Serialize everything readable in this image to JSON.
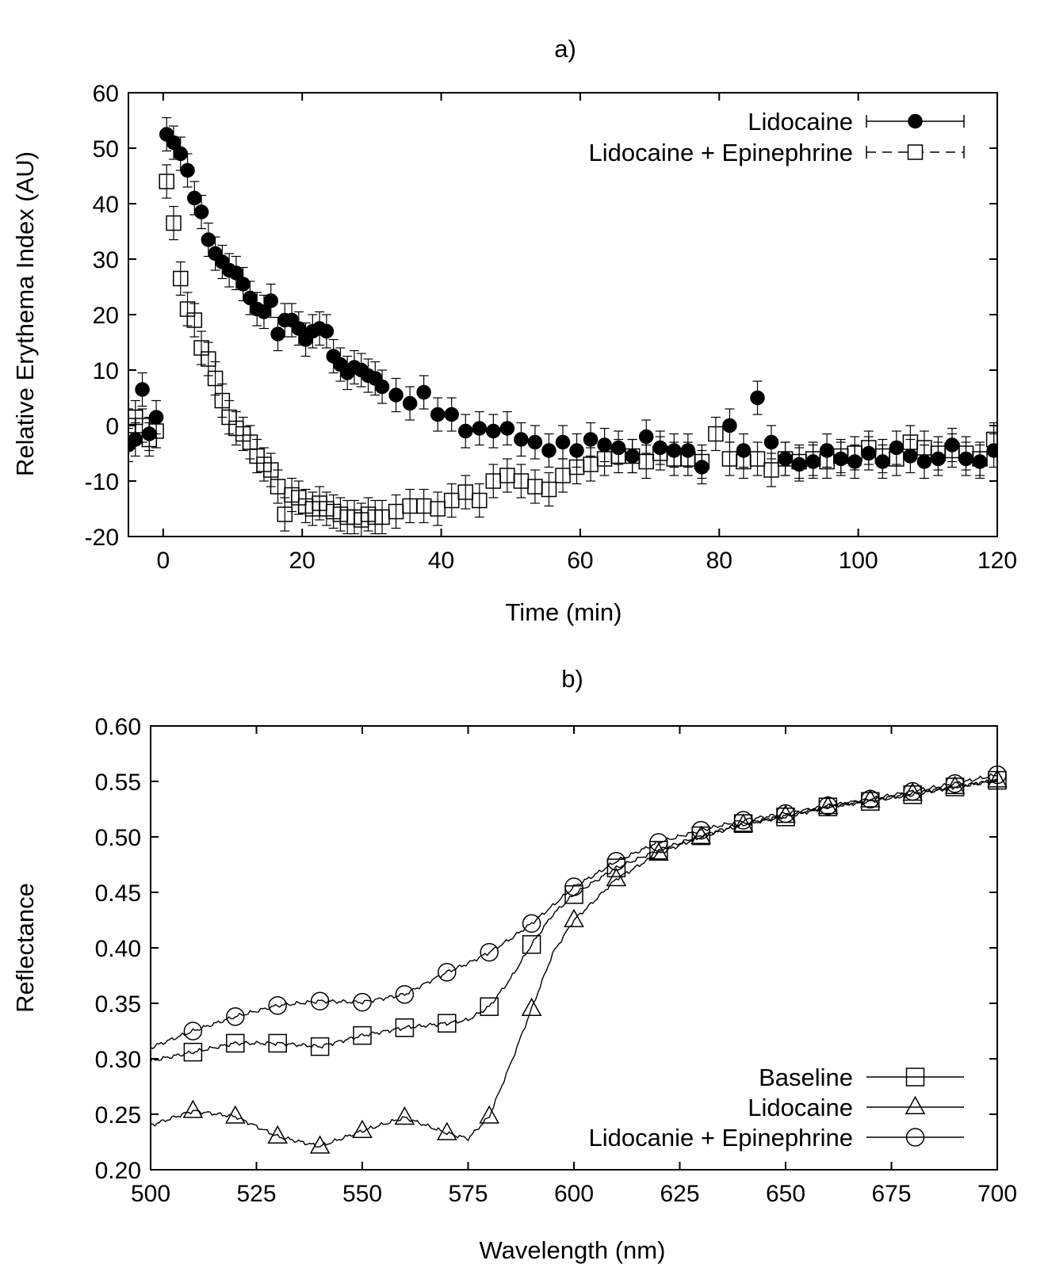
{
  "chart_data": [
    {
      "type": "scatter",
      "title": "a)",
      "xlabel": "Time (min)",
      "ylabel": "Relative Erythema Index (AU)",
      "xlim": [
        -5,
        120
      ],
      "ylim": [
        -20,
        60
      ],
      "xticks": [
        0,
        20,
        40,
        60,
        80,
        100,
        120
      ],
      "yticks": [
        -20,
        -10,
        0,
        10,
        20,
        30,
        40,
        50,
        60
      ],
      "legend_position": "top-right",
      "grid": false,
      "series": [
        {
          "name": "Lidocaine",
          "marker": "filled-circle",
          "error": 3,
          "x": [
            -5,
            -4,
            -3,
            -2,
            -1,
            0.5,
            1.5,
            2.5,
            3.5,
            4.5,
            5.5,
            6.5,
            7.5,
            8.5,
            9.5,
            10.5,
            11.5,
            12.5,
            13.5,
            14.5,
            15.5,
            16.5,
            17.5,
            18.5,
            19.5,
            20.5,
            21.5,
            22.5,
            23.5,
            24.5,
            25.5,
            26.5,
            27.5,
            28.5,
            29.5,
            30.5,
            31.5,
            33.5,
            35.5,
            37.5,
            39.5,
            41.5,
            43.5,
            45.5,
            47.5,
            49.5,
            51.5,
            53.5,
            55.5,
            57.5,
            59.5,
            61.5,
            63.5,
            65.5,
            67.5,
            69.5,
            71.5,
            73.5,
            75.5,
            77.5,
            81.5,
            83.5,
            85.5,
            87.5,
            89.5,
            91.5,
            93.5,
            95.5,
            97.5,
            99.5,
            101.5,
            103.5,
            105.5,
            107.5,
            109.5,
            111.5,
            113.5,
            115.5,
            117.5,
            119.5
          ],
          "y": [
            -3.5,
            -2.5,
            6.5,
            -1.5,
            1.5,
            52.5,
            51,
            49,
            46,
            41,
            38.5,
            33.5,
            31,
            29.5,
            28,
            27.5,
            25.5,
            23,
            21,
            20.5,
            22.5,
            16.5,
            19,
            19,
            17.5,
            15.5,
            17,
            17.5,
            17,
            12.5,
            11,
            9.5,
            10.5,
            10,
            9,
            8.5,
            7,
            5.5,
            4,
            6,
            2,
            2,
            -1,
            -0.5,
            -1,
            -0.5,
            -2.5,
            -3,
            -4.5,
            -3,
            -4.5,
            -2.5,
            -3.5,
            -4,
            -5.5,
            -2,
            -4,
            -4.5,
            -4.5,
            -7.5,
            0,
            -4.5,
            5,
            -3,
            -6,
            -7,
            -6.5,
            -4.5,
            -6,
            -6.5,
            -5,
            -6.5,
            -4,
            -5.5,
            -6.5,
            -6,
            -3.5,
            -6,
            -6.5,
            -4.5
          ]
        },
        {
          "name": "Lidocaine + Epinephrine",
          "marker": "open-square",
          "error": 3,
          "x": [
            -5,
            -4,
            -3,
            -2,
            -1,
            0.5,
            1.5,
            2.5,
            3.5,
            4.5,
            5.5,
            6.5,
            7.5,
            8.5,
            9.5,
            10.5,
            11.5,
            12.5,
            13.5,
            14.5,
            15.5,
            16.5,
            17.5,
            18.5,
            19.5,
            20.5,
            21.5,
            22.5,
            23.5,
            24.5,
            25.5,
            26.5,
            27.5,
            28.5,
            29.5,
            30.5,
            31.5,
            33.5,
            35.5,
            37.5,
            39.5,
            41.5,
            43.5,
            45.5,
            47.5,
            49.5,
            51.5,
            53.5,
            55.5,
            57.5,
            59.5,
            61.5,
            63.5,
            65.5,
            67.5,
            69.5,
            71.5,
            73.5,
            75.5,
            77.5,
            79.5,
            81.5,
            83.5,
            85.5,
            87.5,
            89.5,
            91.5,
            93.5,
            95.5,
            97.5,
            99.5,
            101.5,
            103.5,
            105.5,
            107.5,
            109.5,
            111.5,
            113.5,
            115.5,
            117.5,
            119.5
          ],
          "y": [
            0,
            1.5,
            0,
            -2.5,
            -1,
            44,
            36.5,
            26.5,
            21,
            19,
            14,
            12,
            8.5,
            4.5,
            1.5,
            -0.5,
            -1.5,
            -3,
            -5.5,
            -7,
            -8,
            -11,
            -16,
            -12.5,
            -13,
            -14.5,
            -15,
            -14,
            -15,
            -15.5,
            -16,
            -16.5,
            -16.5,
            -17,
            -16,
            -16.5,
            -16.5,
            -15.5,
            -14.5,
            -14.5,
            -15,
            -13.5,
            -12,
            -13.5,
            -10,
            -9,
            -10,
            -11,
            -11.5,
            -9,
            -7.5,
            -7,
            -6,
            -5.5,
            -5.5,
            -6.5,
            -5,
            -6,
            -6,
            -6.5,
            -1.5,
            -6,
            -6.5,
            -6,
            -8,
            -6,
            -6.5,
            -6,
            -6.5,
            -5.5,
            -5,
            -4,
            -5.5,
            -6,
            -3,
            -4,
            -5,
            -4.5,
            -5,
            -6,
            -2.5
          ]
        }
      ]
    },
    {
      "type": "line",
      "title": "b)",
      "xlabel": "Wavelength (nm)",
      "ylabel": "Reflectance",
      "xlim": [
        500,
        700
      ],
      "ylim": [
        0.2,
        0.6
      ],
      "xticks": [
        500,
        525,
        550,
        575,
        600,
        625,
        650,
        675,
        700
      ],
      "yticks": [
        0.2,
        0.25,
        0.3,
        0.35,
        0.4,
        0.45,
        0.5,
        0.55,
        0.6
      ],
      "legend_position": "bottom-right",
      "grid": false,
      "series": [
        {
          "name": "Baseline",
          "marker": "open-square",
          "x": [
            500,
            510,
            520,
            530,
            540,
            550,
            560,
            570,
            575,
            580,
            585,
            590,
            595,
            600,
            605,
            610,
            620,
            630,
            640,
            650,
            660,
            670,
            680,
            690,
            700
          ],
          "y": [
            0.298,
            0.306,
            0.314,
            0.314,
            0.311,
            0.321,
            0.328,
            0.332,
            0.335,
            0.347,
            0.372,
            0.403,
            0.43,
            0.448,
            0.46,
            0.472,
            0.488,
            0.501,
            0.512,
            0.518,
            0.527,
            0.532,
            0.538,
            0.545,
            0.551
          ]
        },
        {
          "name": "Lidocaine",
          "marker": "open-triangle",
          "x": [
            500,
            510,
            520,
            530,
            540,
            550,
            560,
            570,
            575,
            580,
            585,
            590,
            595,
            600,
            605,
            610,
            620,
            630,
            640,
            650,
            660,
            670,
            680,
            690,
            700
          ],
          "y": [
            0.24,
            0.253,
            0.248,
            0.23,
            0.221,
            0.235,
            0.247,
            0.233,
            0.228,
            0.248,
            0.295,
            0.345,
            0.395,
            0.425,
            0.443,
            0.462,
            0.485,
            0.5,
            0.511,
            0.519,
            0.527,
            0.533,
            0.539,
            0.545,
            0.551
          ]
        },
        {
          "name": "Lidocanie + Epinephrine",
          "marker": "open-circle",
          "x": [
            500,
            510,
            520,
            530,
            540,
            550,
            560,
            570,
            575,
            580,
            585,
            590,
            595,
            600,
            605,
            610,
            620,
            630,
            640,
            650,
            660,
            670,
            680,
            690,
            700
          ],
          "y": [
            0.31,
            0.325,
            0.338,
            0.348,
            0.352,
            0.351,
            0.358,
            0.378,
            0.386,
            0.396,
            0.408,
            0.422,
            0.438,
            0.455,
            0.466,
            0.478,
            0.495,
            0.506,
            0.515,
            0.521,
            0.528,
            0.534,
            0.541,
            0.548,
            0.556
          ]
        }
      ],
      "marker_x": {
        "Baseline": [
          510,
          520,
          530,
          540,
          550,
          560,
          570,
          580,
          590,
          600,
          610,
          620,
          630,
          640,
          650,
          660,
          670,
          680,
          690,
          700
        ],
        "Lidocaine": [
          510,
          520,
          530,
          540,
          550,
          560,
          570,
          580,
          590,
          600,
          610,
          620,
          630,
          640,
          650,
          660,
          670,
          680,
          690,
          700
        ],
        "Lidocanie + Epinephrine": [
          510,
          520,
          530,
          540,
          550,
          560,
          570,
          580,
          590,
          600,
          610,
          620,
          630,
          640,
          650,
          660,
          670,
          680,
          690,
          700
        ]
      }
    }
  ]
}
